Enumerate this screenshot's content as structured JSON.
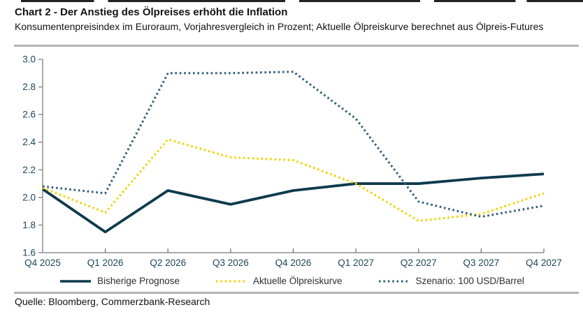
{
  "header": {
    "title": "Chart 2 - Der Anstieg des Ölpreises erhöht die Inflation",
    "subtitle": "Konsumentenpreisindex im Euroraum, Vorjahresvergleich in Prozent; Aktuelle Ölpreiskurve berechnet aus Ölpreis-Futures"
  },
  "chart_data": {
    "type": "line",
    "title": "Chart 2 - Der Anstieg des Ölpreises erhöht die Inflation",
    "categories": [
      "Q4 2025",
      "Q1 2026",
      "Q2 2026",
      "Q3 2026",
      "Q4 2026",
      "Q1 2027",
      "Q2 2027",
      "Q3 2027",
      "Q4 2027"
    ],
    "series": [
      {
        "name": "Bisherige Prognose",
        "style": "solid",
        "color": "#0e3a4d",
        "values": [
          2.06,
          1.75,
          2.05,
          1.95,
          2.05,
          2.1,
          2.1,
          2.14,
          2.17
        ]
      },
      {
        "name": "Aktuelle Ölpreiskurve",
        "style": "dotted",
        "color": "#f0d402",
        "values": [
          2.07,
          1.89,
          2.42,
          2.29,
          2.27,
          2.1,
          1.83,
          1.88,
          2.03
        ]
      },
      {
        "name": "Szenario: 100 USD/Barrel",
        "style": "dotted",
        "color": "#33607a",
        "values": [
          2.08,
          2.03,
          2.9,
          2.9,
          2.91,
          2.57,
          1.97,
          1.86,
          1.94
        ]
      }
    ],
    "ylim": [
      1.6,
      3.0
    ],
    "yticks": [
      "3.0",
      "2.8",
      "2.6",
      "2.4",
      "2.2",
      "2.0",
      "1.8",
      "1.6"
    ],
    "xlabel": "",
    "ylabel": "",
    "grid": false,
    "legend_position": "bottom",
    "axis_color": "#8f8f8f",
    "x_tick_color": "#6b6b6b",
    "tick_label_color": "#1e4558"
  },
  "footer": {
    "source": "Quelle: Bloomberg, Commerzbank-Research"
  }
}
